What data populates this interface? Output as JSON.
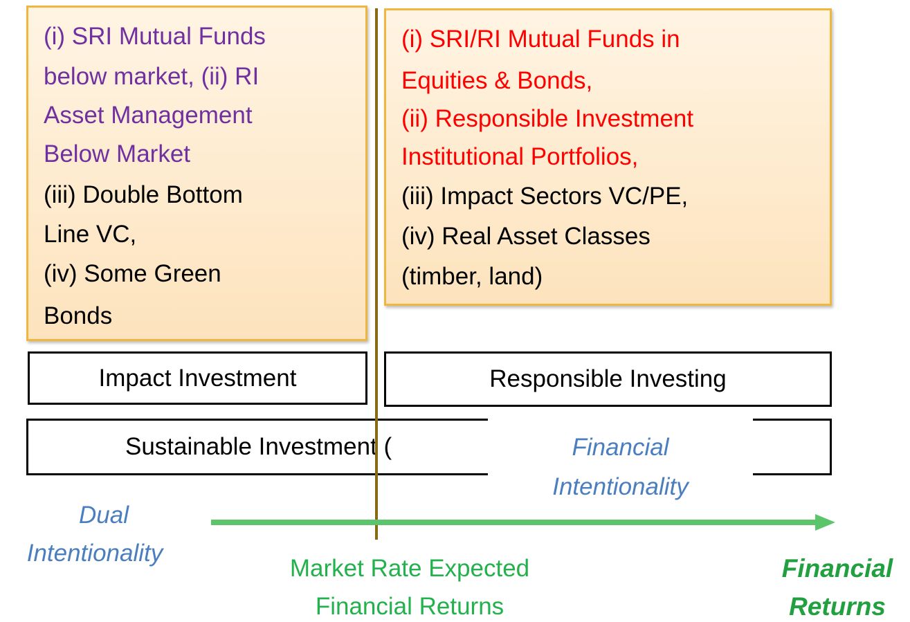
{
  "left_box": {
    "lines": [
      "(i) SRI Mutual Funds",
      "below market, (ii) RI",
      "Asset Management",
      "Below Market",
      "(iii) Double Bottom",
      "Line VC,",
      "(iv) Some Green",
      "Bonds"
    ]
  },
  "right_box": {
    "lines": [
      "(i) SRI/RI Mutual Funds in",
      "Equities & Bonds,",
      "(ii) Responsible Investment",
      "Institutional Portfolios,",
      "(iii) Impact Sectors VC/PE,",
      "(iv) Real Asset Classes",
      "(timber, land)"
    ]
  },
  "impact_box": "Impact Investment",
  "responsible_box": "Responsible Investing",
  "sustainable_box": "Sustainable Investment (",
  "financial_intentionality": [
    "Financial",
    "Intentionality"
  ],
  "dual_intentionality": [
    "Dual",
    "Intentionality"
  ],
  "market_rate": [
    "Market Rate Expected",
    "Financial Returns"
  ],
  "financial_returns": [
    "Financial",
    "Returns"
  ]
}
